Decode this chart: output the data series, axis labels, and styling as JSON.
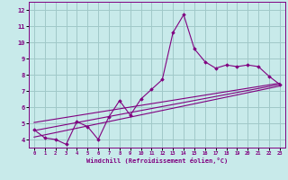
{
  "xlabel": "Windchill (Refroidissement éolien,°C)",
  "bg_color": "#c8eaea",
  "grid_color": "#a0c8c8",
  "line_color": "#800080",
  "xlim": [
    -0.5,
    23.5
  ],
  "ylim": [
    3.5,
    12.5
  ],
  "xticks": [
    0,
    1,
    2,
    3,
    4,
    5,
    6,
    7,
    8,
    9,
    10,
    11,
    12,
    13,
    14,
    15,
    16,
    17,
    18,
    19,
    20,
    21,
    22,
    23
  ],
  "yticks": [
    4,
    5,
    6,
    7,
    8,
    9,
    10,
    11,
    12
  ],
  "data_x": [
    0,
    1,
    2,
    3,
    4,
    5,
    6,
    7,
    8,
    9,
    10,
    11,
    12,
    13,
    14,
    15,
    16,
    17,
    18,
    19,
    20,
    21,
    22,
    23
  ],
  "data_y": [
    4.6,
    4.1,
    4.0,
    3.7,
    5.1,
    4.8,
    4.0,
    5.4,
    6.4,
    5.5,
    6.5,
    7.1,
    7.7,
    10.6,
    11.7,
    9.6,
    8.8,
    8.4,
    8.6,
    8.5,
    8.6,
    8.5,
    7.9,
    7.4
  ],
  "line1_x": [
    0,
    23
  ],
  "line1_y": [
    4.55,
    7.4
  ],
  "line2_x": [
    0,
    23
  ],
  "line2_y": [
    4.15,
    7.3
  ],
  "line3_x": [
    0,
    23
  ],
  "line3_y": [
    5.05,
    7.48
  ]
}
